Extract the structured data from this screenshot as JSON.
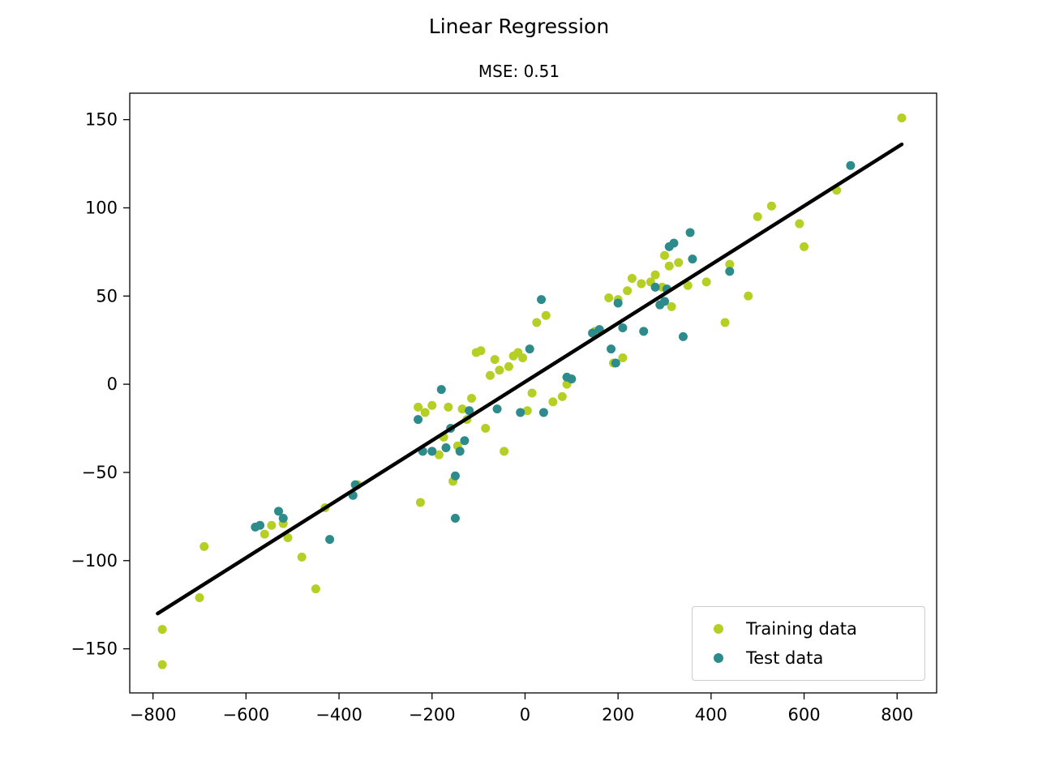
{
  "chart_data": {
    "type": "scatter",
    "title": "Linear Regression",
    "subtitle": "MSE: 0.51",
    "xlabel": "",
    "ylabel": "",
    "xlim": [
      -850,
      885
    ],
    "ylim": [
      -175,
      165
    ],
    "grid": false,
    "legend_position": "lower right",
    "x_ticks": [
      {
        "value": -800,
        "label": "−800"
      },
      {
        "value": -600,
        "label": "−600"
      },
      {
        "value": -400,
        "label": "−400"
      },
      {
        "value": -200,
        "label": "−200"
      },
      {
        "value": 0,
        "label": "0"
      },
      {
        "value": 200,
        "label": "200"
      },
      {
        "value": 400,
        "label": "400"
      },
      {
        "value": 600,
        "label": "600"
      },
      {
        "value": 800,
        "label": "800"
      }
    ],
    "y_ticks": [
      {
        "value": 150,
        "label": "150"
      },
      {
        "value": 100,
        "label": "100"
      },
      {
        "value": 50,
        "label": "50"
      },
      {
        "value": 0,
        "label": "0"
      },
      {
        "value": -50,
        "label": "−50"
      },
      {
        "value": -100,
        "label": "−100"
      },
      {
        "value": -150,
        "label": "−150"
      }
    ],
    "series": [
      {
        "name": "Training data",
        "color": "#b5cf25",
        "points": [
          [
            -780,
            -159
          ],
          [
            -780,
            -139
          ],
          [
            -700,
            -121
          ],
          [
            -690,
            -92
          ],
          [
            -560,
            -85
          ],
          [
            -545,
            -80
          ],
          [
            -520,
            -79
          ],
          [
            -510,
            -87
          ],
          [
            -480,
            -98
          ],
          [
            -450,
            -116
          ],
          [
            -430,
            -70
          ],
          [
            -360,
            -57
          ],
          [
            -230,
            -13
          ],
          [
            -225,
            -67
          ],
          [
            -215,
            -16
          ],
          [
            -200,
            -12
          ],
          [
            -185,
            -40
          ],
          [
            -175,
            -30
          ],
          [
            -165,
            -13
          ],
          [
            -155,
            -55
          ],
          [
            -145,
            -35
          ],
          [
            -135,
            -14
          ],
          [
            -125,
            -20
          ],
          [
            -115,
            -8
          ],
          [
            -105,
            18
          ],
          [
            -95,
            19
          ],
          [
            -85,
            -25
          ],
          [
            -75,
            5
          ],
          [
            -65,
            14
          ],
          [
            -55,
            8
          ],
          [
            -45,
            -38
          ],
          [
            -35,
            10
          ],
          [
            -25,
            16
          ],
          [
            -15,
            18
          ],
          [
            -5,
            15
          ],
          [
            5,
            -15
          ],
          [
            15,
            -5
          ],
          [
            25,
            35
          ],
          [
            45,
            39
          ],
          [
            60,
            -10
          ],
          [
            80,
            -7
          ],
          [
            90,
            0
          ],
          [
            150,
            30
          ],
          [
            180,
            49
          ],
          [
            190,
            12
          ],
          [
            200,
            48
          ],
          [
            210,
            15
          ],
          [
            220,
            53
          ],
          [
            230,
            60
          ],
          [
            250,
            57
          ],
          [
            270,
            58
          ],
          [
            280,
            62
          ],
          [
            295,
            55
          ],
          [
            300,
            73
          ],
          [
            310,
            67
          ],
          [
            315,
            44
          ],
          [
            330,
            69
          ],
          [
            350,
            56
          ],
          [
            390,
            58
          ],
          [
            430,
            35
          ],
          [
            440,
            68
          ],
          [
            480,
            50
          ],
          [
            500,
            95
          ],
          [
            530,
            101
          ],
          [
            590,
            91
          ],
          [
            600,
            78
          ],
          [
            670,
            110
          ],
          [
            810,
            151
          ]
        ]
      },
      {
        "name": "Test data",
        "color": "#2d8b8b",
        "points": [
          [
            -580,
            -81
          ],
          [
            -570,
            -80
          ],
          [
            -530,
            -72
          ],
          [
            -520,
            -76
          ],
          [
            -420,
            -88
          ],
          [
            -370,
            -63
          ],
          [
            -365,
            -57
          ],
          [
            -230,
            -20
          ],
          [
            -220,
            -38
          ],
          [
            -200,
            -38
          ],
          [
            -180,
            -3
          ],
          [
            -170,
            -36
          ],
          [
            -160,
            -25
          ],
          [
            -150,
            -76
          ],
          [
            -150,
            -52
          ],
          [
            -140,
            -38
          ],
          [
            -130,
            -32
          ],
          [
            -120,
            -15
          ],
          [
            -60,
            -14
          ],
          [
            -10,
            -16
          ],
          [
            10,
            20
          ],
          [
            35,
            48
          ],
          [
            40,
            -16
          ],
          [
            90,
            4
          ],
          [
            100,
            3
          ],
          [
            145,
            29
          ],
          [
            160,
            31
          ],
          [
            185,
            20
          ],
          [
            195,
            12
          ],
          [
            200,
            46
          ],
          [
            210,
            32
          ],
          [
            255,
            30
          ],
          [
            280,
            55
          ],
          [
            290,
            45
          ],
          [
            300,
            47
          ],
          [
            305,
            54
          ],
          [
            310,
            78
          ],
          [
            320,
            80
          ],
          [
            340,
            27
          ],
          [
            355,
            86
          ],
          [
            360,
            71
          ],
          [
            440,
            64
          ],
          [
            700,
            124
          ]
        ]
      }
    ],
    "regression_line": {
      "color": "#000000",
      "width": 4.5,
      "points": [
        [
          -790,
          -130
        ],
        [
          810,
          136
        ]
      ]
    }
  }
}
